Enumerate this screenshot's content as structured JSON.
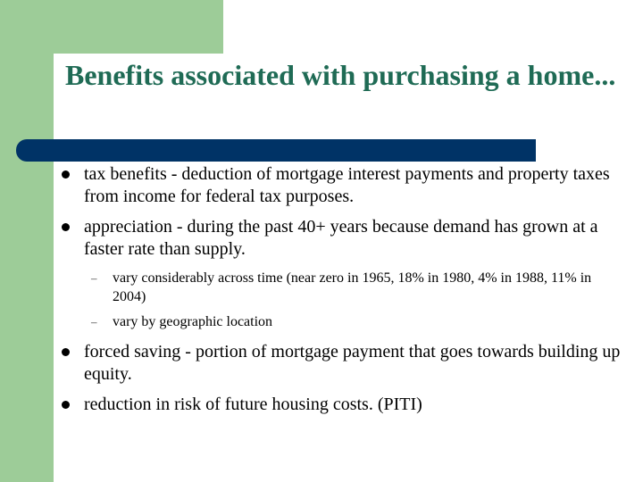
{
  "slide": {
    "title": "Benefits associated with purchasing a home...",
    "colors": {
      "accent_green": "#9dcc98",
      "title_green": "#1f6b55",
      "navy_bar": "#003366"
    },
    "bullets": [
      {
        "text": "tax benefits - deduction of mortgage interest payments and property taxes from income for federal tax purposes."
      },
      {
        "text": "appreciation - during the past 40+ years because demand has grown at a faster rate than supply.",
        "sub": [
          "vary considerably across time (near zero in 1965, 18% in 1980, 4% in 1988, 11% in 2004)",
          "vary by geographic location"
        ]
      },
      {
        "text": "forced saving - portion of mortgage payment that goes towards building up equity."
      },
      {
        "text": "reduction in risk of future housing costs. (PITI)"
      }
    ],
    "sub_marker": "–"
  }
}
